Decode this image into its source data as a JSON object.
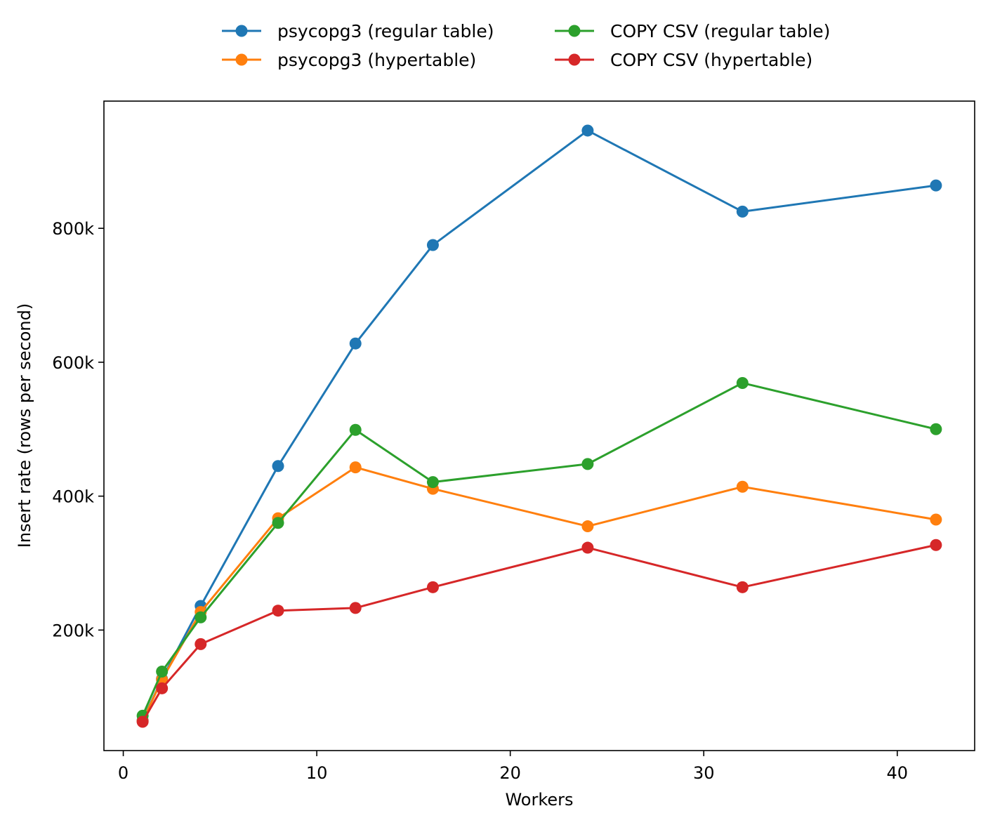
{
  "chart_data": {
    "type": "line",
    "xlabel": "Workers",
    "ylabel": "Insert rate (rows per second)",
    "xlim": [
      -1,
      44
    ],
    "ylim": [
      20000,
      990000
    ],
    "x_ticks": [
      0,
      10,
      20,
      30,
      40
    ],
    "x_tick_labels": [
      "0",
      "10",
      "20",
      "30",
      "40"
    ],
    "y_ticks": [
      200000,
      400000,
      600000,
      800000
    ],
    "y_tick_labels": [
      "200k",
      "400k",
      "600k",
      "800k"
    ],
    "grid": false,
    "legend_position": "top-center (above plot, 2 columns)",
    "x": [
      1,
      2,
      4,
      8,
      12,
      16,
      24,
      32,
      42
    ],
    "series": [
      {
        "name": "psycopg3 (regular table)",
        "color": "#1f77b4",
        "values": [
          65000,
          127000,
          236000,
          445000,
          628000,
          775000,
          946000,
          825000,
          864000
        ]
      },
      {
        "name": "psycopg3 (hypertable)",
        "color": "#ff7f0e",
        "values": [
          64000,
          126000,
          227000,
          367000,
          443000,
          411000,
          355000,
          414000,
          365000
        ]
      },
      {
        "name": "COPY CSV (regular table)",
        "color": "#2ca02c",
        "values": [
          72000,
          138000,
          219000,
          360000,
          499000,
          421000,
          448000,
          569000,
          500000
        ]
      },
      {
        "name": "COPY CSV (hypertable)",
        "color": "#d62728",
        "values": [
          63000,
          113000,
          179000,
          229000,
          233000,
          264000,
          323000,
          264000,
          327000
        ]
      }
    ]
  }
}
